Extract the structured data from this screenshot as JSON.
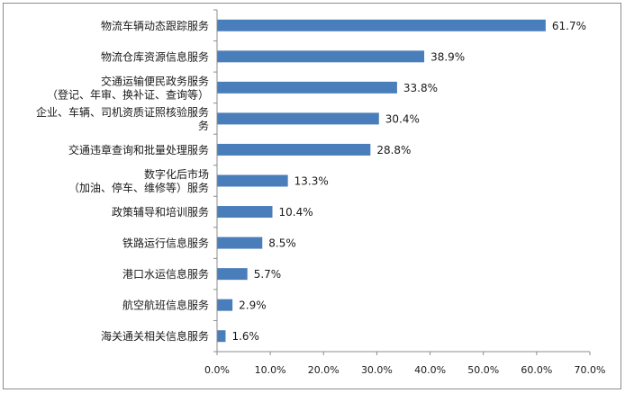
{
  "chart_data": {
    "type": "bar",
    "orientation": "horizontal",
    "categories": [
      [
        "物流车辆动态跟踪服务"
      ],
      [
        "物流仓库资源信息服务"
      ],
      [
        "交通运输便民政务服务",
        "（登记、年审、换补证、查询等）"
      ],
      [
        "企业、车辆、司机资质证照核验服务",
        "务"
      ],
      [
        "交通违章查询和批量处理服务"
      ],
      [
        "数字化后市场",
        "（加油、停车、维修等）服务"
      ],
      [
        "政策辅导和培训服务"
      ],
      [
        "铁路运行信息服务"
      ],
      [
        "港口水运信息服务"
      ],
      [
        "航空航班信息服务"
      ],
      [
        "海关通关相关信息服务"
      ]
    ],
    "values": [
      61.7,
      38.9,
      33.8,
      30.4,
      28.8,
      13.3,
      10.4,
      8.5,
      5.7,
      2.9,
      1.6
    ],
    "value_labels": [
      "61.7%",
      "38.9%",
      "33.8%",
      "30.4%",
      "28.8%",
      "13.3%",
      "10.4%",
      "8.5%",
      "5.7%",
      "2.9%",
      "1.6%"
    ],
    "xlim": [
      0,
      70
    ],
    "x_ticks": [
      0,
      10,
      20,
      30,
      40,
      50,
      60,
      70
    ],
    "x_tick_labels": [
      "0.0%",
      "10.0%",
      "20.0%",
      "30.0%",
      "40.0%",
      "50.0%",
      "60.0%",
      "70.0%"
    ],
    "grid": false,
    "legend": "none",
    "bar_color": "#4a7ebb",
    "frame_color": "#8c8c8c",
    "axis_color": "#8c8c8c"
  }
}
